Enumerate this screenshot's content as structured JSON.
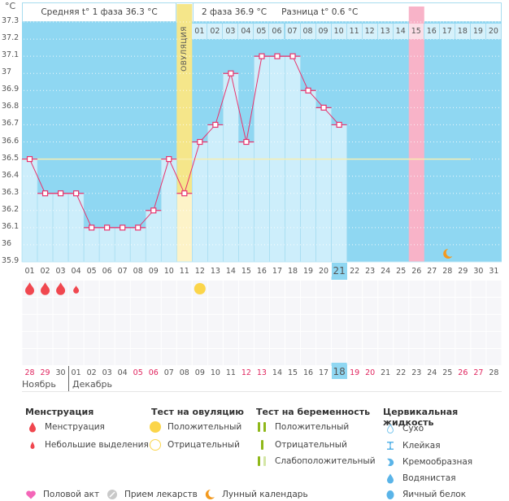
{
  "header": {
    "unit": "°C",
    "phase1_label": "Средняя t° 1 фаза 36.3 °C",
    "phase2_label": "2 фаза 36.9 °C",
    "diff_label": "Разница t° 0.6 °C",
    "ovulation_label": "ОВУЛЯЦИЯ"
  },
  "colors": {
    "chart_bg": "#8fd7f2",
    "bar_fill": "#cdeefb",
    "line": "#e8336d",
    "ovulation": "#f5e68a",
    "ovulation_bar": "#fdf3c8",
    "highlight_day": "#f8b3c8",
    "coverline": "#f7eeb0",
    "today": "#8fd7f2"
  },
  "chart_data": {
    "type": "line",
    "title": "",
    "xlabel": "",
    "ylabel": "°C",
    "ylim": [
      35.9,
      37.3
    ],
    "yticks": [
      35.9,
      36,
      36.1,
      36.2,
      36.3,
      36.4,
      36.5,
      36.6,
      36.7,
      36.8,
      36.9,
      37,
      37.1,
      37.2,
      37.3
    ],
    "ytick_labels": [
      "35.9",
      "36",
      "36.1",
      "36.2",
      "36.3",
      "36.4",
      "36.5",
      "36.6",
      "36.7",
      "36.8",
      "36.9",
      "37",
      "37.1",
      "37.2",
      "37.3"
    ],
    "grid": true,
    "cycle_days": [
      "01",
      "02",
      "03",
      "04",
      "05",
      "06",
      "07",
      "08",
      "09",
      "10",
      "11",
      "12",
      "13",
      "14",
      "15",
      "16",
      "17",
      "18",
      "19",
      "20",
      "21",
      "22",
      "23",
      "24",
      "25",
      "26",
      "27",
      "28",
      "29",
      "30",
      "31"
    ],
    "phase2_days": [
      "01",
      "02",
      "03",
      "04",
      "05",
      "06",
      "07",
      "08",
      "09",
      "10",
      "11",
      "12",
      "13",
      "14",
      "15",
      "16",
      "17",
      "18",
      "19",
      "20"
    ],
    "series": [
      {
        "name": "Базальная температура",
        "values": [
          36.5,
          36.3,
          36.3,
          36.3,
          36.1,
          36.1,
          36.1,
          36.1,
          36.2,
          36.5,
          36.3,
          36.6,
          36.7,
          37.0,
          36.6,
          37.1,
          37.1,
          37.1,
          36.9,
          36.8,
          36.7,
          null,
          null,
          null,
          null,
          null,
          null,
          null,
          null,
          null,
          null
        ]
      }
    ],
    "coverline": 36.5,
    "ovulation_day": 11,
    "highlight_day": 26,
    "today_day": 21,
    "moon_day": 28,
    "menstruation_days": [
      1,
      2,
      3
    ],
    "spotting_days": [
      4
    ],
    "ovulation_test_positive_days": [
      12
    ],
    "calendar_dates": [
      "28",
      "29",
      "30",
      "01",
      "02",
      "03",
      "04",
      "05",
      "06",
      "07",
      "08",
      "09",
      "10",
      "11",
      "12",
      "13",
      "14",
      "15",
      "16",
      "17",
      "18",
      "19",
      "20",
      "21",
      "22",
      "23",
      "24",
      "25",
      "26",
      "27",
      "28"
    ],
    "calendar_weekend": [
      true,
      true,
      false,
      false,
      false,
      false,
      false,
      true,
      true,
      false,
      false,
      false,
      false,
      false,
      true,
      true,
      false,
      false,
      false,
      false,
      false,
      true,
      true,
      false,
      false,
      false,
      false,
      false,
      true,
      true,
      false
    ],
    "months": [
      "Ноябрь",
      "Декабрь"
    ]
  },
  "legend": {
    "menstruation": {
      "title": "Менструация",
      "items": [
        "Менструация",
        "Небольшие выделения"
      ]
    },
    "ovulation_test": {
      "title": "Тест на овуляцию",
      "items": [
        "Положительный",
        "Отрицательный"
      ]
    },
    "pregnancy_test": {
      "title": "Тест на беременность",
      "items": [
        "Положительный",
        "Отрицательный",
        "Слабоположительный"
      ]
    },
    "cervical_fluid": {
      "title": "Цервикальная жидкость",
      "items": [
        "Сухо",
        "Клейкая",
        "Кремообразная",
        "Водянистая",
        "Яичный белок"
      ]
    },
    "other": [
      "Половой акт",
      "Прием лекарств",
      "Лунный календарь"
    ]
  }
}
